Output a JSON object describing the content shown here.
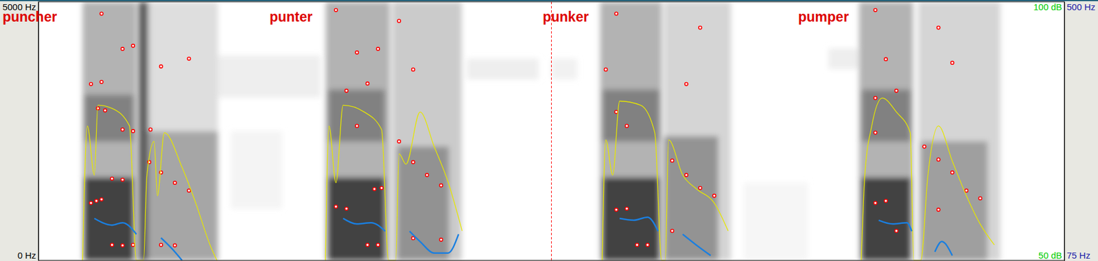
{
  "chart_data": {
    "type": "spectrogram",
    "xlim": [
      0,
      4
    ],
    "ylim": [
      0,
      5000
    ],
    "yticks": [
      {
        "value": 0,
        "label": "0 Hz"
      },
      {
        "value": 5000,
        "label": "5000 Hz"
      }
    ],
    "y2lim": [
      50,
      100
    ],
    "y2ticks": [
      {
        "value": 50,
        "label": "50 dB"
      },
      {
        "value": 100,
        "label": "100 dB"
      }
    ],
    "y3lim": [
      75,
      500
    ],
    "y3ticks": [
      {
        "value": 75,
        "label": "75 Hz"
      },
      {
        "value": 500,
        "label": "500 Hz"
      }
    ],
    "tick_labels": "y",
    "annotations": [
      {
        "text": "puncher",
        "x": -0.14
      },
      {
        "text": "punter",
        "x": 0.901
      },
      {
        "text": "punker",
        "x": 1.966
      },
      {
        "text": "pumper",
        "x": 2.962
      }
    ],
    "vlines": [
      {
        "x": 2.0,
        "line_style": "dashed",
        "color": "#ff0000"
      }
    ],
    "cells": [
      {
        "t0": 0.172,
        "t1": 0.382,
        "f0": 0,
        "f1": 5000,
        "level": 0.45
      },
      {
        "t0": 0.18,
        "t1": 0.37,
        "f0": 0,
        "f1": 1600,
        "level": 0.85
      },
      {
        "t0": 0.18,
        "t1": 0.37,
        "f0": 2300,
        "f1": 3200,
        "level": 0.6
      },
      {
        "t0": 0.39,
        "t1": 0.43,
        "f0": 0,
        "f1": 5000,
        "level": 0.8
      },
      {
        "t0": 0.43,
        "t1": 0.7,
        "f0": 0,
        "f1": 2500,
        "level": 0.5
      },
      {
        "t0": 0.43,
        "t1": 0.7,
        "f0": 2500,
        "f1": 5000,
        "level": 0.25
      },
      {
        "t0": 0.7,
        "t1": 1.1,
        "f0": 3150,
        "f1": 3960,
        "level": 0.15
      },
      {
        "t0": 0.75,
        "t1": 0.95,
        "f0": 1000,
        "f1": 2500,
        "level": 0.1
      },
      {
        "t0": 1.12,
        "t1": 1.37,
        "f0": 0,
        "f1": 5000,
        "level": 0.45
      },
      {
        "t0": 1.13,
        "t1": 1.35,
        "f0": 0,
        "f1": 1600,
        "level": 0.85
      },
      {
        "t0": 1.13,
        "t1": 1.35,
        "f0": 2300,
        "f1": 3300,
        "level": 0.6
      },
      {
        "t0": 1.38,
        "t1": 1.65,
        "f0": 0,
        "f1": 5000,
        "level": 0.35
      },
      {
        "t0": 1.4,
        "t1": 1.6,
        "f0": 0,
        "f1": 2200,
        "level": 0.55
      },
      {
        "t0": 1.67,
        "t1": 1.95,
        "f0": 3500,
        "f1": 3900,
        "level": 0.15
      },
      {
        "t0": 2.0,
        "t1": 2.1,
        "f0": 3500,
        "f1": 3900,
        "level": 0.12
      },
      {
        "t0": 2.19,
        "t1": 2.43,
        "f0": 0,
        "f1": 5000,
        "level": 0.45
      },
      {
        "t0": 2.2,
        "t1": 2.42,
        "f0": 0,
        "f1": 1600,
        "level": 0.85
      },
      {
        "t0": 2.2,
        "t1": 2.42,
        "f0": 2300,
        "f1": 3300,
        "level": 0.6
      },
      {
        "t0": 2.44,
        "t1": 2.7,
        "f0": 0,
        "f1": 5000,
        "level": 0.3
      },
      {
        "t0": 2.44,
        "t1": 2.65,
        "f0": 0,
        "f1": 2400,
        "level": 0.55
      },
      {
        "t0": 2.75,
        "t1": 3.0,
        "f0": 0,
        "f1": 1500,
        "level": 0.08
      },
      {
        "t0": 3.08,
        "t1": 3.2,
        "f0": 3700,
        "f1": 4100,
        "level": 0.15
      },
      {
        "t0": 3.2,
        "t1": 3.41,
        "f0": 0,
        "f1": 5000,
        "level": 0.45
      },
      {
        "t0": 3.21,
        "t1": 3.4,
        "f0": 0,
        "f1": 1600,
        "level": 0.85
      },
      {
        "t0": 3.21,
        "t1": 3.4,
        "f0": 2300,
        "f1": 3300,
        "level": 0.6
      },
      {
        "t0": 3.43,
        "t1": 3.75,
        "f0": 0,
        "f1": 5000,
        "level": 0.3
      },
      {
        "t0": 3.44,
        "t1": 3.7,
        "f0": 0,
        "f1": 2300,
        "level": 0.5
      }
    ],
    "series": [
      {
        "type": "scatter",
        "color": "#ff0000",
        "marker": "circle",
        "x": [
          0.205,
          0.226,
          0.246,
          0.287,
          0.328,
          0.369,
          0.287,
          0.328,
          0.328,
          0.369,
          0.232,
          0.26,
          0.205,
          0.246,
          0.328,
          0.369,
          0.246,
          0.432,
          0.478,
          0.532,
          0.587,
          0.478,
          0.532,
          0.437,
          0.478,
          0.587,
          1.16,
          1.201,
          1.283,
          1.324,
          1.31,
          1.338,
          1.242,
          1.201,
          1.283,
          1.242,
          1.324,
          1.16,
          1.406,
          1.461,
          1.515,
          1.57,
          1.461,
          1.57,
          1.461,
          1.406,
          2.253,
          2.294,
          2.334,
          2.375,
          2.253,
          2.294,
          2.212,
          2.253,
          2.471,
          2.526,
          2.58,
          2.635,
          2.471,
          2.526,
          2.58,
          3.263,
          3.304,
          3.263,
          3.345,
          3.263,
          3.304,
          3.263,
          3.345,
          3.454,
          3.509,
          3.563,
          3.618,
          3.672,
          3.509,
          3.563,
          3.509
        ],
        "values": [
          1110,
          1150,
          1180,
          300,
          290,
          300,
          1580,
          1560,
          2530,
          2500,
          2940,
          2900,
          3410,
          3450,
          4090,
          4150,
          4770,
          1900,
          1700,
          1500,
          1350,
          300,
          290,
          2530,
          3750,
          3900,
          1040,
          1000,
          300,
          300,
          1380,
          1400,
          2600,
          3280,
          3420,
          4020,
          4090,
          4840,
          2300,
          1900,
          1650,
          1450,
          430,
          400,
          3690,
          4630,
          980,
          1000,
          300,
          300,
          2870,
          2600,
          3690,
          4770,
          1930,
          1650,
          1400,
          1250,
          570,
          3410,
          4500,
          1110,
          1150,
          3140,
          3280,
          2470,
          3890,
          4840,
          570,
          2200,
          1950,
          1700,
          1350,
          1200,
          980,
          3820,
          4500
        ]
      },
      {
        "type": "line",
        "color": "#e6e600",
        "axis": "y2",
        "x": [
          0.172,
          0.191,
          0.218,
          0.232,
          0.287,
          0.355,
          0.382,
          0.41,
          0.423,
          0.451,
          0.464,
          0.491,
          0.56,
          0.614,
          0.669,
          0.696,
          null,
          1.119,
          1.133,
          1.16,
          1.188,
          1.27,
          1.338,
          1.365,
          1.393,
          1.406,
          1.433,
          1.488,
          1.543,
          1.597,
          1.652,
          null,
          2.198,
          2.212,
          2.239,
          2.266,
          2.348,
          2.403,
          2.43,
          2.444,
          2.457,
          2.512,
          2.566,
          2.635,
          2.689,
          null,
          3.208,
          3.222,
          3.249,
          3.29,
          3.345,
          3.399,
          3.413,
          3.44,
          3.468,
          3.509,
          3.563,
          3.618,
          3.672,
          3.727
        ],
        "values": [
          50,
          76,
          66.5,
          80,
          79.4,
          76,
          50,
          50,
          66.5,
          73,
          62.5,
          74.7,
          68,
          61,
          53,
          50,
          null,
          50,
          76,
          65,
          80,
          78.7,
          75.3,
          50,
          50,
          70.6,
          68.6,
          78.7,
          72,
          65.2,
          55.7,
          null,
          50,
          73.3,
          66.5,
          80.8,
          80,
          74.7,
          50,
          50,
          73.3,
          66.5,
          63.8,
          61.1,
          55.7,
          null,
          50,
          66.5,
          76,
          81.4,
          78.7,
          74.7,
          50,
          50,
          66.5,
          76,
          69.2,
          62.5,
          57,
          53
        ]
      },
      {
        "type": "line",
        "color": "#1a7fe0",
        "axis": "y3",
        "x": [
          0.218,
          0.287,
          0.328,
          0.382,
          null,
          0.478,
          0.519,
          0.56,
          null,
          1.188,
          1.242,
          1.297,
          1.352,
          null,
          1.447,
          1.488,
          1.543,
          1.597,
          1.638,
          null,
          2.266,
          2.321,
          2.375,
          2.416,
          null,
          2.512,
          2.566,
          2.621,
          null,
          3.276,
          3.331,
          3.386,
          3.405,
          null,
          3.495,
          3.522,
          3.563
        ],
        "values": [
          144,
          133,
          137,
          118,
          null,
          112,
          95,
          75,
          null,
          144,
          135,
          137,
          123,
          null,
          123,
          106,
          87,
          87,
          118,
          null,
          144,
          141,
          146,
          123,
          null,
          118,
          100,
          83,
          null,
          141,
          135,
          137,
          123,
          null,
          89,
          106,
          83
        ]
      }
    ]
  }
}
